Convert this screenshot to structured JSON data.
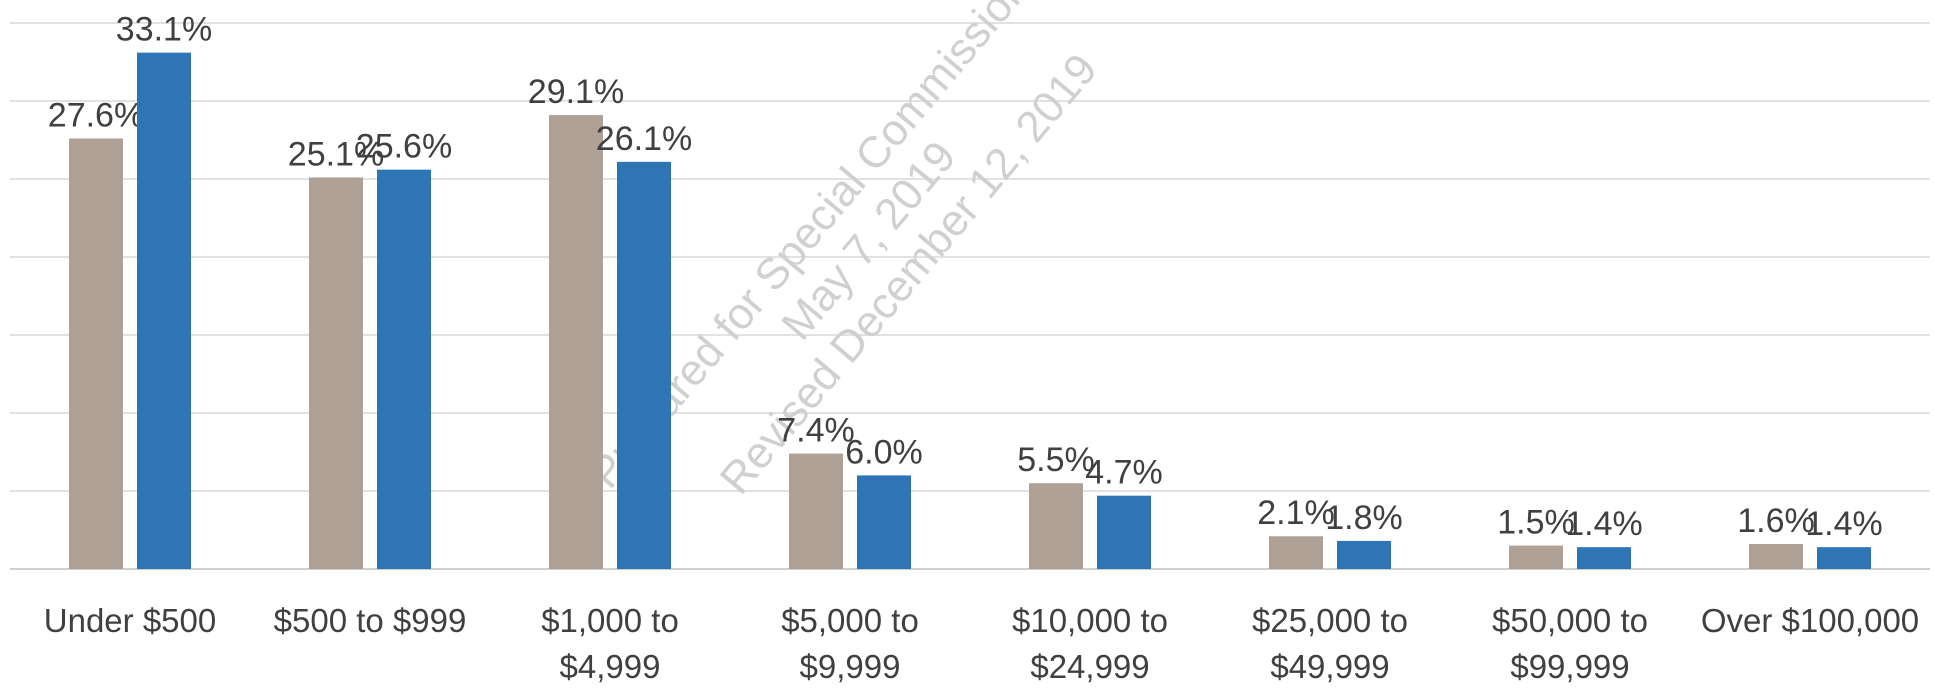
{
  "chart_data": {
    "type": "bar",
    "categories": [
      [
        "Under $500"
      ],
      [
        "$500 to $999"
      ],
      [
        "$1,000 to",
        "$4,999"
      ],
      [
        "$5,000 to",
        "$9,999"
      ],
      [
        "$10,000 to",
        "$24,999"
      ],
      [
        "$25,000 to",
        "$49,999"
      ],
      [
        "$50,000 to",
        "$99,999"
      ],
      [
        "Over $100,000"
      ]
    ],
    "series": [
      {
        "color": "#b0a197",
        "values": [
          27.6,
          25.1,
          29.1,
          7.4,
          5.5,
          2.1,
          1.5,
          1.6
        ],
        "value_labels": [
          "27.6%",
          "25.1%",
          "29.1%",
          "7.4%",
          "5.5%",
          "2.1%",
          "1.5%",
          "1.6%"
        ]
      },
      {
        "color": "#2e75b6",
        "values": [
          33.1,
          25.6,
          26.1,
          6.0,
          4.7,
          1.8,
          1.4,
          1.4
        ],
        "value_labels": [
          "33.1%",
          "25.6%",
          "26.1%",
          "6.0%",
          "4.7%",
          "1.8%",
          "1.4%",
          "1.4%"
        ]
      }
    ],
    "ylim": [
      0,
      35
    ],
    "yticks": [
      0,
      5,
      10,
      15,
      20,
      25,
      30,
      35
    ],
    "grid": true,
    "show_ytick_labels": false,
    "watermark": [
      "Prepared for Special Commission on",
      "May 7, 2019",
      "Revised December 12, 2019"
    ]
  }
}
